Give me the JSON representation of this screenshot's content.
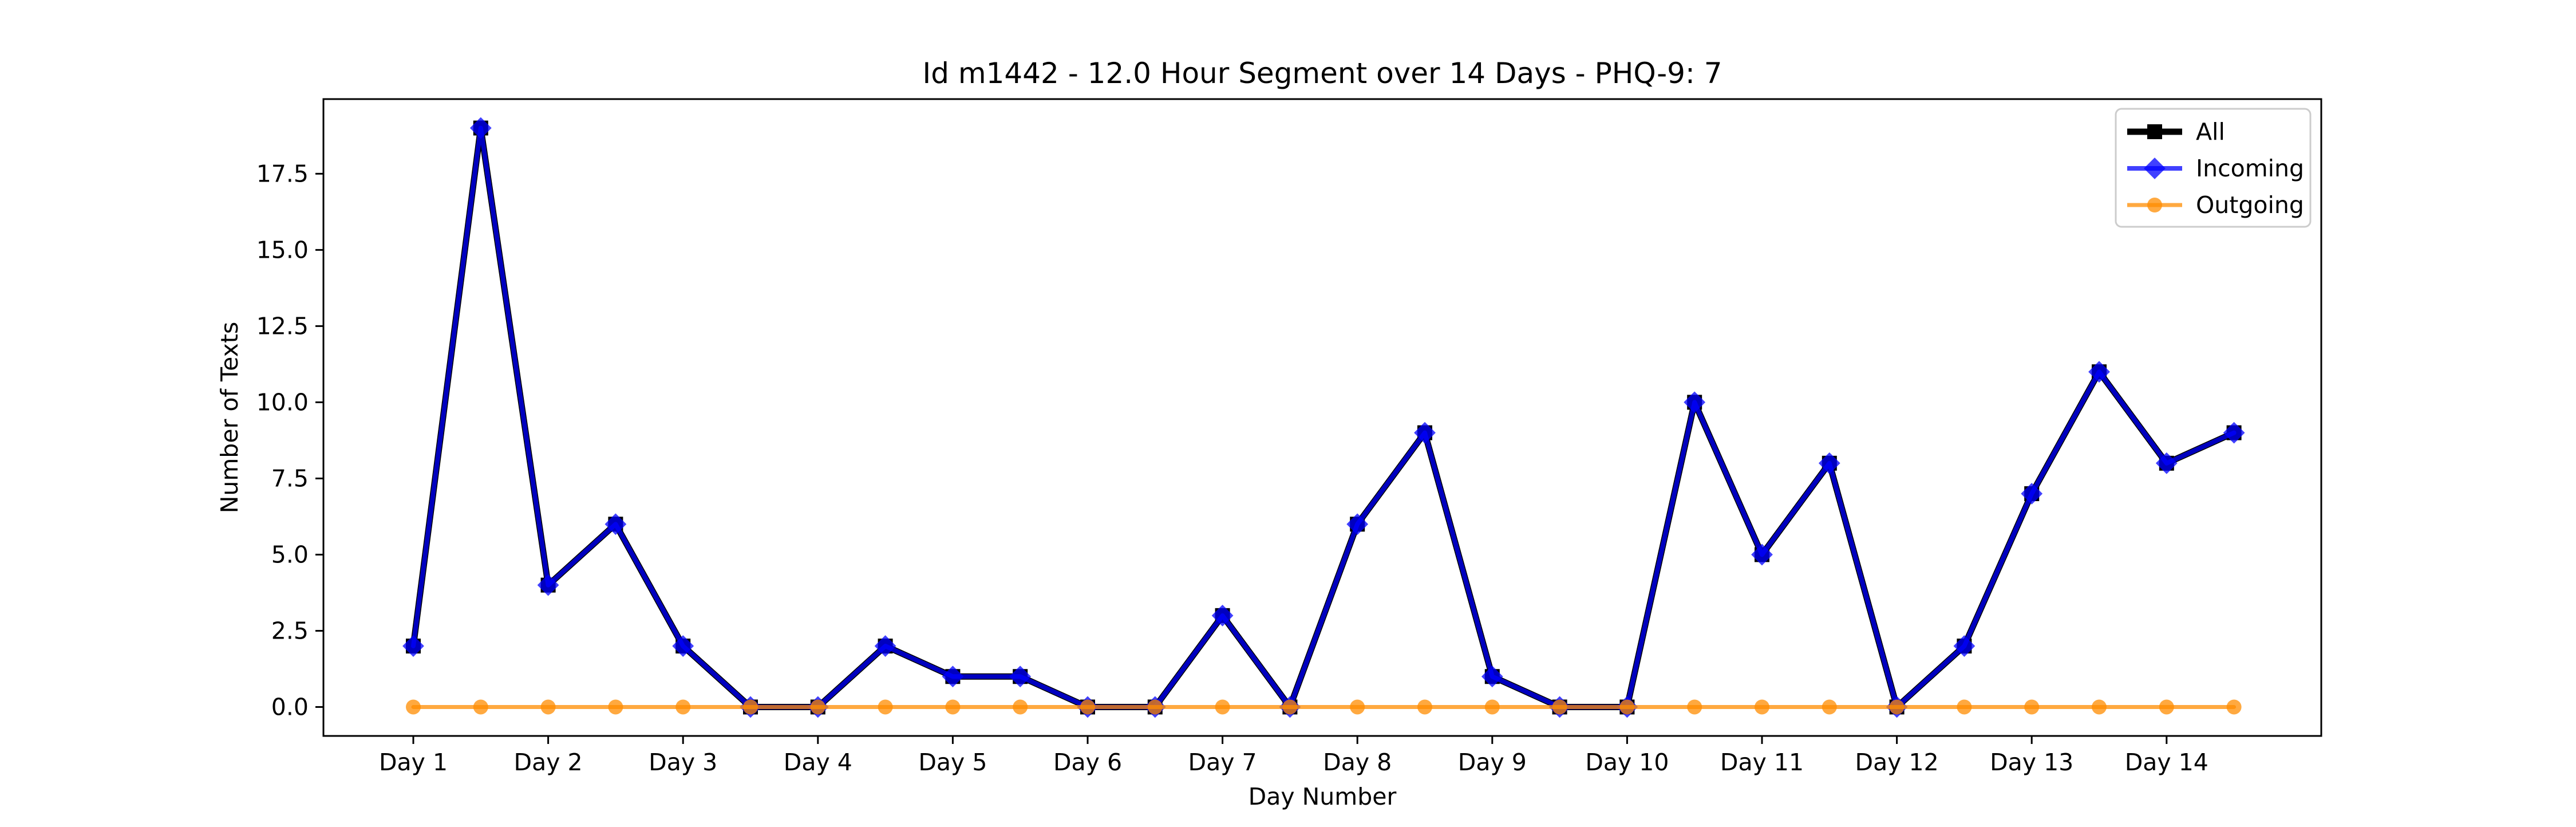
{
  "chart_data": {
    "type": "line",
    "title": "Id m1442 - 12.0 Hour Segment over 14 Days - PHQ-9: 7",
    "xlabel": "Day Number",
    "ylabel": "Number of Texts",
    "x_tick_labels": [
      "Day 1",
      "Day 2",
      "Day 3",
      "Day 4",
      "Day 5",
      "Day 6",
      "Day 7",
      "Day 8",
      "Day 9",
      "Day 10",
      "Day 11",
      "Day 12",
      "Day 13",
      "Day 14"
    ],
    "y_ticks": [
      "0.0",
      "2.5",
      "5.0",
      "7.5",
      "10.0",
      "12.5",
      "15.0",
      "17.5"
    ],
    "ylim": [
      -0.95,
      19.95
    ],
    "x_points_per_day": 2,
    "grid": false,
    "legend_position": "top-right",
    "series": [
      {
        "name": "All",
        "color": "#000000",
        "marker": "square",
        "values": [
          2,
          19,
          4,
          6,
          2,
          0,
          0,
          2,
          1,
          1,
          0,
          0,
          3,
          0,
          6,
          9,
          1,
          0,
          0,
          10,
          5,
          8,
          0,
          2,
          7,
          11,
          8,
          9
        ]
      },
      {
        "name": "Incoming",
        "color": "#0000ff",
        "marker": "diamond",
        "values": [
          2,
          19,
          4,
          6,
          2,
          0,
          0,
          2,
          1,
          1,
          0,
          0,
          3,
          0,
          6,
          9,
          1,
          0,
          0,
          10,
          5,
          8,
          0,
          2,
          7,
          11,
          8,
          9
        ]
      },
      {
        "name": "Outgoing",
        "color": "#ff8c00",
        "marker": "circle",
        "values": [
          0,
          0,
          0,
          0,
          0,
          0,
          0,
          0,
          0,
          0,
          0,
          0,
          0,
          0,
          0,
          0,
          0,
          0,
          0,
          0,
          0,
          0,
          0,
          0,
          0,
          0,
          0,
          0
        ]
      }
    ]
  }
}
